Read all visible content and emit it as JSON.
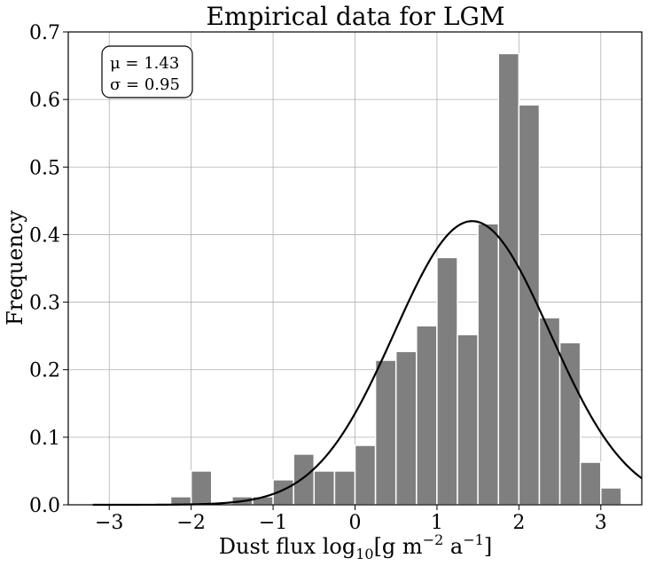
{
  "chart_data": {
    "type": "bar",
    "title": "Empirical data for LGM",
    "xlabel": "Dust flux log",
    "xlabel_sub": "10",
    "xlabel_unit_pre": "[g m",
    "xlabel_exp1": "−2",
    "xlabel_unit_mid": " a",
    "xlabel_exp2": "−1",
    "xlabel_unit_post": "]",
    "ylabel": "Frequency",
    "xlim": [
      -3.5,
      3.5
    ],
    "ylim": [
      0,
      0.7
    ],
    "xticks": [
      -3,
      -2,
      -1,
      0,
      1,
      2,
      3
    ],
    "xtick_labels": [
      "−3",
      "−2",
      "−1",
      "0",
      "1",
      "2",
      "3"
    ],
    "yticks": [
      0,
      0.1,
      0.2,
      0.3,
      0.4,
      0.5,
      0.6,
      0.7
    ],
    "ytick_labels": [
      "0.0",
      "0.1",
      "0.2",
      "0.3",
      "0.4",
      "0.5",
      "0.6",
      "0.7"
    ],
    "grid": true,
    "bin_width": 0.25,
    "bins": [
      {
        "left": -2.25,
        "value": 0.012
      },
      {
        "left": -2.0,
        "value": 0.05
      },
      {
        "left": -1.5,
        "value": 0.012
      },
      {
        "left": -1.25,
        "value": 0.012
      },
      {
        "left": -1.0,
        "value": 0.037
      },
      {
        "left": -0.75,
        "value": 0.075
      },
      {
        "left": -0.5,
        "value": 0.05
      },
      {
        "left": -0.25,
        "value": 0.05
      },
      {
        "left": 0.0,
        "value": 0.088
      },
      {
        "left": 0.25,
        "value": 0.214
      },
      {
        "left": 0.5,
        "value": 0.227
      },
      {
        "left": 0.75,
        "value": 0.265
      },
      {
        "left": 1.0,
        "value": 0.366
      },
      {
        "left": 1.25,
        "value": 0.252
      },
      {
        "left": 1.5,
        "value": 0.416
      },
      {
        "left": 1.75,
        "value": 0.668
      },
      {
        "left": 2.0,
        "value": 0.592
      },
      {
        "left": 2.25,
        "value": 0.277
      },
      {
        "left": 2.5,
        "value": 0.24
      },
      {
        "left": 2.75,
        "value": 0.063
      },
      {
        "left": 3.0,
        "value": 0.025
      }
    ],
    "fit": {
      "type": "normal",
      "mu": 1.43,
      "sigma": 0.95
    },
    "annotation": {
      "mu_label": "μ = 1.43",
      "sigma_label": "σ = 0.95",
      "location": "top-left"
    }
  }
}
